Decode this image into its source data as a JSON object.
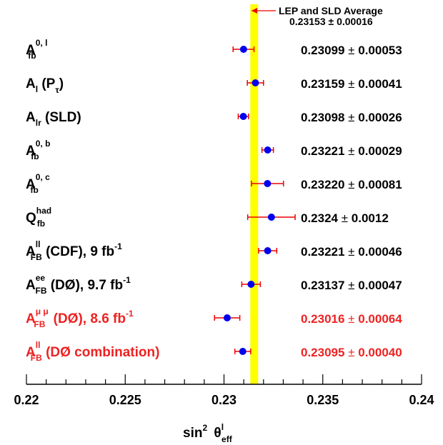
{
  "chart_data": {
    "type": "scatter",
    "orientation": "horizontal-errorbars",
    "xlabel": {
      "main": "sin",
      "sup": "2",
      "theta": "θ",
      "theta_sup": "l",
      "theta_sub": "eff"
    },
    "xlim": [
      0.22,
      0.24
    ],
    "xticks": [
      0.22,
      0.225,
      0.23,
      0.235,
      0.24
    ],
    "xtick_labels": [
      "0.22",
      "0.225",
      "0.23",
      "0.235",
      "0.24"
    ],
    "band": {
      "center": 0.23153,
      "uncertainty": 0.00016,
      "color": "#ffff00",
      "label_line1": "LEP and SLD Average",
      "label_line2": "0.23153 ± 0.00016"
    },
    "colors": {
      "point": "#0000ee",
      "errorbar": "#ee0000",
      "text_default": "#000000",
      "text_highlight": "#ee2222"
    },
    "series": [
      {
        "label": {
          "main": "A",
          "sub": "fb",
          "sup": "0, l",
          "rest": ""
        },
        "value": 0.23099,
        "error": 0.00053,
        "value_text": "0.23099",
        "error_text": "0.00053",
        "color": "#000000"
      },
      {
        "label": {
          "main": "A",
          "sub": "l",
          "sup": "",
          "rest": "(P",
          "rest_sub": "τ",
          "rest_end": ")"
        },
        "value": 0.23159,
        "error": 0.00041,
        "value_text": "0.23159",
        "error_text": "0.00041",
        "color": "#000000"
      },
      {
        "label": {
          "main": "A",
          "sub": "lr",
          "sup": "",
          "rest": "(SLD)"
        },
        "value": 0.23098,
        "error": 0.00026,
        "value_text": "0.23098",
        "error_text": "0.00026",
        "color": "#000000"
      },
      {
        "label": {
          "main": "A",
          "sub": "fb",
          "sup": "0, b",
          "rest": ""
        },
        "value": 0.23221,
        "error": 0.00029,
        "value_text": "0.23221",
        "error_text": "0.00029",
        "color": "#000000"
      },
      {
        "label": {
          "main": "A",
          "sub": "fb",
          "sup": "0, c",
          "rest": ""
        },
        "value": 0.2322,
        "error": 0.00081,
        "value_text": "0.23220",
        "error_text": "0.00081",
        "color": "#000000"
      },
      {
        "label": {
          "main": "Q",
          "sub": "fb",
          "sup": "had",
          "rest": ""
        },
        "value": 0.2324,
        "error": 0.0012,
        "value_text": "0.2324",
        "error_text": "0.0012",
        "color": "#000000"
      },
      {
        "label": {
          "main": "A",
          "sub": "FB",
          "sup": "ll",
          "rest": "(CDF), 9 fb",
          "rest_sup": "-1"
        },
        "value": 0.23221,
        "error": 0.00046,
        "value_text": "0.23221",
        "error_text": "0.00046",
        "color": "#000000"
      },
      {
        "label": {
          "main": "A",
          "sub": "FB",
          "sup": "ee",
          "rest": "(DØ), 9.7 fb",
          "rest_sup": "-1"
        },
        "value": 0.23137,
        "error": 0.00047,
        "value_text": "0.23137",
        "error_text": "0.00047",
        "color": "#000000"
      },
      {
        "label": {
          "main": "A",
          "sub": "FB",
          "sup": "μ μ",
          "rest": "(DØ), 8.6 fb",
          "rest_sup": "-1"
        },
        "value": 0.23016,
        "error": 0.00064,
        "value_text": "0.23016",
        "error_text": "0.00064",
        "color": "#ee2222"
      },
      {
        "label": {
          "main": "A",
          "sub": "FB",
          "sup": "ll",
          "rest": "(DØ combination)"
        },
        "value": 0.23095,
        "error": 0.0004,
        "value_text": "0.23095",
        "error_text": "0.00040",
        "color": "#ee2222"
      }
    ]
  }
}
